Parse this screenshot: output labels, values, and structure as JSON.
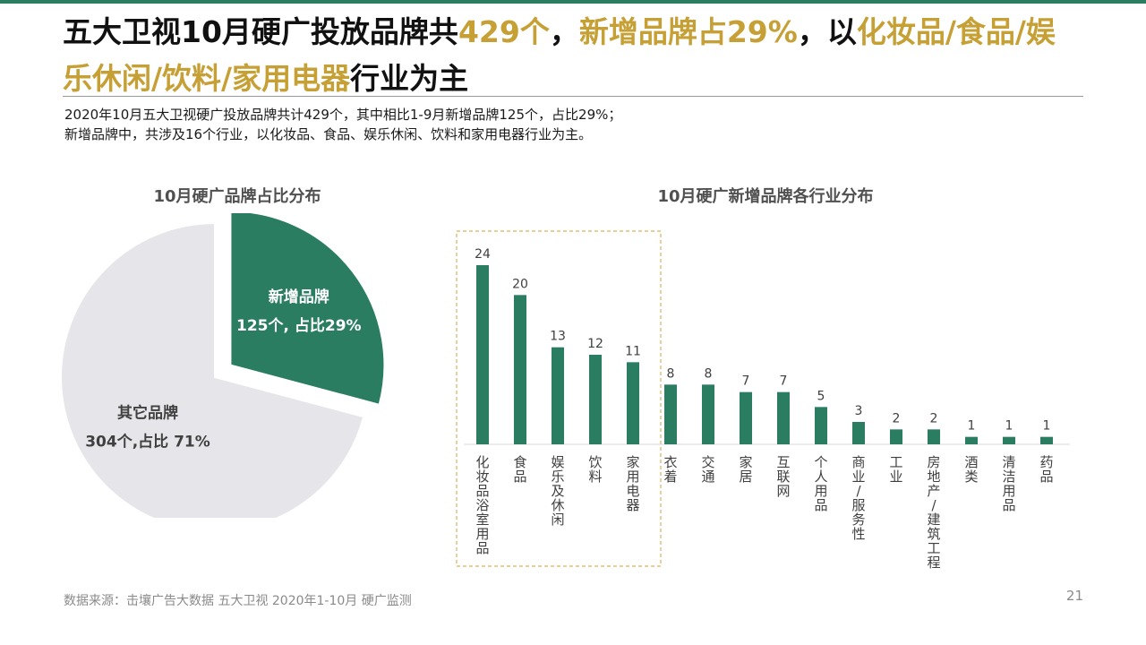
{
  "header": {
    "title_parts": [
      {
        "text": "五大卫视10月硬广投放品牌共",
        "highlight": false
      },
      {
        "text": "429个",
        "highlight": true
      },
      {
        "text": "，",
        "highlight": false
      },
      {
        "text": "新增品牌占29%",
        "highlight": true
      },
      {
        "text": "，以",
        "highlight": false
      },
      {
        "text": "化妆品/食品/娱乐休闲/饮料/家用电器",
        "highlight": true
      },
      {
        "text": "行业为主",
        "highlight": false
      }
    ]
  },
  "summary": {
    "line1": "2020年10月五大卫视硬广投放品牌共计429个，其中相比1-9月新增品牌125个，占比29%；",
    "line2": "新增品牌中，共涉及16个行业，以化妆品、食品、娱乐休闲、饮料和家用电器行业为主。"
  },
  "colors": {
    "accent": "#2a7d61",
    "highlight_text": "#c6a035",
    "pie_other": "#e6e6ea",
    "dashed_box": "#d9b25a"
  },
  "chart_data": [
    {
      "type": "pie",
      "title": "10月硬广品牌占比分布",
      "slices": [
        {
          "name": "新增品牌",
          "label": "125个, 占比29%",
          "value": 125,
          "percent": 29,
          "exploded": true
        },
        {
          "name": "其它品牌",
          "label": "304个,占比 71%",
          "value": 304,
          "percent": 71,
          "exploded": false
        }
      ]
    },
    {
      "type": "bar",
      "title": "10月硬广新增品牌各行业分布",
      "categories": [
        "化妆品浴室用品",
        "食品",
        "娱乐及休闲",
        "饮料",
        "家用电器",
        "衣着",
        "交通",
        "家居",
        "互联网",
        "个人用品",
        "商业/服务性",
        "工业",
        "房地产/建筑工程",
        "酒类",
        "清洁用品",
        "药品"
      ],
      "values": [
        24,
        20,
        13,
        12,
        11,
        8,
        8,
        7,
        7,
        5,
        3,
        2,
        2,
        1,
        1,
        1
      ],
      "highlighted_count": 5,
      "ylim": [
        0,
        24
      ]
    }
  ],
  "footer": {
    "source": "数据来源：击壤广告大数据 五大卫视 2020年1-10月 硬广监测",
    "page": "21"
  }
}
